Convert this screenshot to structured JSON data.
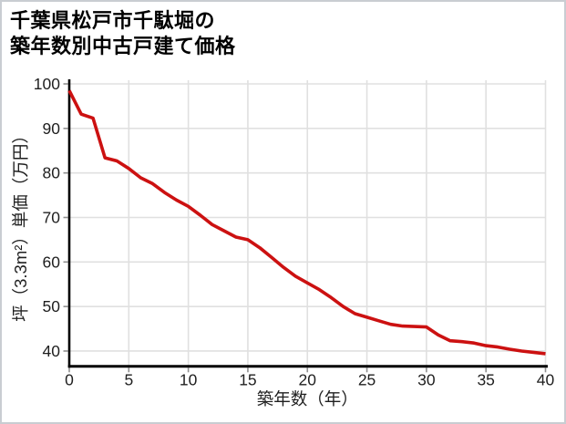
{
  "window": {
    "bg": "#ffffff",
    "frame_color": "#c9cdd2"
  },
  "title": {
    "line1": "千葉県松戸市千駄堀の",
    "line2": "築年数別中古戸建て価格"
  },
  "chart_data": {
    "type": "line",
    "title": "千葉県松戸市千駄堀の築年数別中古戸建て価格",
    "xlabel": "築年数（年）",
    "ylabel": "坪（3.3m²）単価（万円）",
    "x": [
      0,
      1,
      2,
      3,
      4,
      5,
      6,
      7,
      8,
      9,
      10,
      11,
      12,
      13,
      14,
      15,
      16,
      17,
      18,
      19,
      20,
      21,
      22,
      23,
      24,
      25,
      26,
      27,
      28,
      29,
      30,
      31,
      32,
      33,
      34,
      35,
      36,
      37,
      38,
      39,
      40
    ],
    "values": [
      98.5,
      93.2,
      92.3,
      83.4,
      82.7,
      81.0,
      78.9,
      77.6,
      75.6,
      73.9,
      72.5,
      70.5,
      68.4,
      67.0,
      65.6,
      65.0,
      63.2,
      61.0,
      58.8,
      56.8,
      55.3,
      53.8,
      52.0,
      50.0,
      48.4,
      47.6,
      46.8,
      46.0,
      45.6,
      45.5,
      45.4,
      43.6,
      42.3,
      42.1,
      41.8,
      41.2,
      40.9,
      40.4,
      40.0,
      39.7,
      39.4
    ],
    "xlim": [
      0,
      40
    ],
    "ylim": [
      36.6,
      100.8
    ],
    "x_ticks": [
      0,
      5,
      10,
      15,
      20,
      25,
      30,
      35,
      40
    ],
    "y_ticks": [
      40,
      50,
      60,
      70,
      80,
      90,
      100
    ],
    "grid": true,
    "legend": false,
    "colors": {
      "line": "#cc1111",
      "grid": "#e0e0e0",
      "axis": "#000000",
      "tick": "#8f8f8f",
      "text": "#1f1f1f"
    }
  }
}
